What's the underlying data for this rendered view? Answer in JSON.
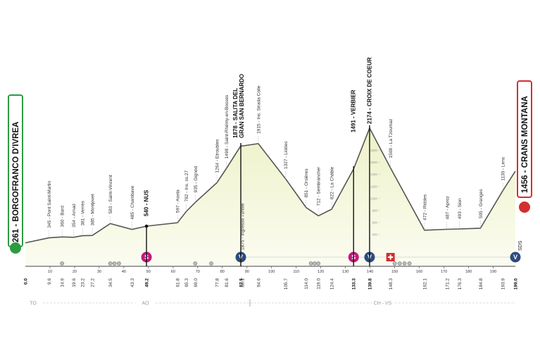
{
  "chart_data": {
    "type": "elevation-profile",
    "x": [
      0,
      9.6,
      14.9,
      19.6,
      23.2,
      27.2,
      34.5,
      43.3,
      49.2,
      61.8,
      65.3,
      69.0,
      77.8,
      81.6,
      87.5,
      88.1,
      94.6,
      105.7,
      114.0,
      119.0,
      124.4,
      133.3,
      139.8,
      148.3,
      162.1,
      171.2,
      176.3,
      184.8,
      193.9,
      199.0
    ],
    "x_labels": [
      "0.0",
      "9.6",
      "14.9",
      "19.6",
      "23.2",
      "27.2",
      "34.5",
      "43.3",
      "49.2",
      "61.8",
      "65.3",
      "69.0",
      "77.8",
      "81.6",
      "87.5",
      "88.1",
      "94.6",
      "105.7",
      "114.0",
      "119.0",
      "124.4",
      "133.3",
      "139.8",
      "148.3",
      "162.1",
      "171.2",
      "176.3",
      "184.8",
      "193.9",
      "199.0"
    ],
    "values": [
      261,
      345,
      360,
      354,
      381,
      385,
      583,
      485,
      540,
      597,
      782,
      935,
      1264,
      1498,
      1878,
      1875,
      1915,
      1327,
      851,
      712,
      822,
      1491,
      2174,
      1508,
      472,
      487,
      493,
      505,
      1130,
      1456
    ],
    "value_labels": [
      "261 - BORGOFRANCO D'IVREA",
      "345 - Pont Saint-Martin",
      "360 - Bard",
      "354 - Arnad",
      "381 - Verrès",
      "385 - Montjovet",
      "583 - Saint-Vincent",
      "485 - Chambave",
      "540 - NUS",
      "597 - Aosta",
      "782 - Ins. ss.27",
      "935 - Gignod",
      "1264 - Etroubles",
      "1498 - Saint-Rhémy-en-Bosses",
      [
        "1878 - SALITA DEL",
        "GRAN SAN BERNARDO"
      ],
      "1875 - Ingresso Tunnel",
      "1915 - Ins. Strada Colle",
      "1327 - Liddes",
      "851 - Orsières",
      "712 - Sembrancher",
      "822 - La Châble",
      "1491 - VERBIER",
      "2174 - CROIX DE COEUR",
      "1508 - La Tzoumaz",
      "472 - Riddes",
      "487 - Aproz",
      "493 - Sion",
      "505 - Granges",
      "1130 - Lens",
      "1456 - CRANS MONTANA"
    ],
    "xlim": [
      0,
      199
    ],
    "xticks": [
      10,
      20,
      30,
      40,
      50,
      60,
      70,
      80,
      90,
      100,
      110,
      120,
      130,
      140,
      150,
      160,
      170,
      180,
      190
    ],
    "ylim": [
      0,
      2000
    ],
    "yticks": [
      400,
      600,
      800,
      1000,
      1200,
      1400,
      1600,
      1800
    ],
    "regions": [
      "TO",
      "AO",
      "CH - VS"
    ],
    "finish_note": "SDS",
    "line_color": "#555555",
    "fill_color": "#f3f5d8"
  }
}
